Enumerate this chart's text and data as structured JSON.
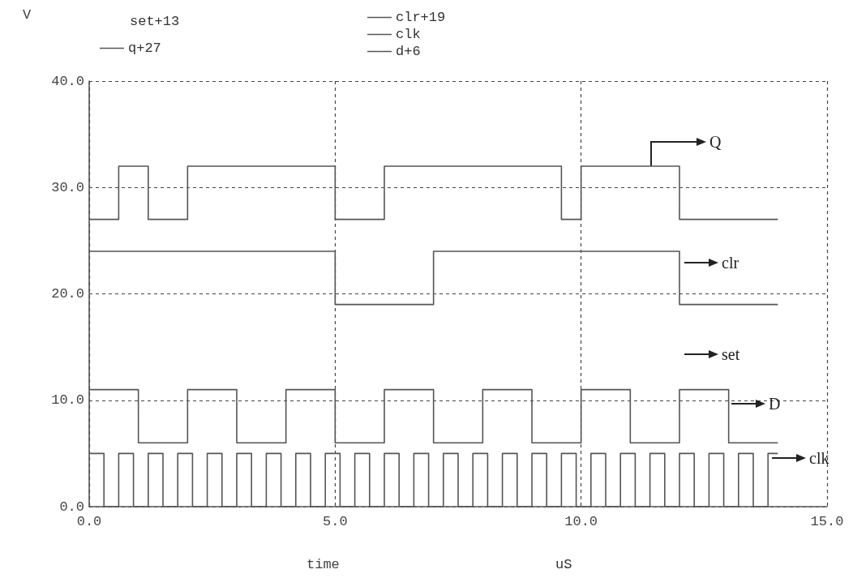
{
  "chart_data": {
    "type": "step",
    "ylabel": "V",
    "xlabel": "time",
    "annotations": [
      "set+13",
      "uS",
      "Q",
      "clr",
      "set",
      "D",
      "clk"
    ],
    "series": [
      {
        "name": "q+27",
        "color": "#555555",
        "x": [
          0,
          0.6,
          1.2,
          2,
          5,
          6,
          9.6,
          10,
          12,
          14
        ],
        "values": [
          27,
          32,
          27,
          32,
          27,
          32,
          27,
          32,
          27,
          27
        ]
      },
      {
        "name": "clr+19",
        "color": "#555555",
        "x": [
          0,
          5,
          7,
          12,
          14
        ],
        "values": [
          24,
          19,
          24,
          19,
          19
        ]
      },
      {
        "name": "clk",
        "color": "#555555",
        "x": [
          0,
          0.3,
          0.6,
          0.9,
          1.2,
          1.5,
          1.8,
          2.1,
          2.4,
          2.7,
          3,
          3.3,
          3.6,
          3.9,
          4.2,
          4.5,
          4.8,
          5.1,
          5.4,
          5.7,
          6,
          6.3,
          6.6,
          6.9,
          7.2,
          7.5,
          7.8,
          8.1,
          8.4,
          8.7,
          9,
          9.3,
          9.6,
          9.9,
          10.2,
          10.5,
          10.8,
          11.1,
          11.4,
          11.7,
          12,
          12.3,
          12.6,
          12.9,
          13.2,
          13.5,
          13.8,
          14
        ],
        "values": [
          5,
          0,
          5,
          0,
          5,
          0,
          5,
          0,
          5,
          0,
          5,
          0,
          5,
          0,
          5,
          0,
          5,
          0,
          5,
          0,
          5,
          0,
          5,
          0,
          5,
          0,
          5,
          0,
          5,
          0,
          5,
          0,
          5,
          0,
          5,
          0,
          5,
          0,
          5,
          0,
          5,
          0,
          5,
          0,
          5,
          0,
          5,
          5
        ]
      },
      {
        "name": "d+6",
        "color": "#555555",
        "x": [
          0,
          1,
          2,
          3,
          4,
          5,
          6,
          7,
          8,
          9,
          10,
          11,
          12,
          13,
          14
        ],
        "values": [
          11,
          6,
          11,
          6,
          11,
          6,
          11,
          6,
          11,
          6,
          11,
          6,
          11,
          6,
          6
        ]
      }
    ],
    "xlim": [
      0,
      15
    ],
    "xticks": [
      {
        "value": 0,
        "label": "0.0"
      },
      {
        "value": 5,
        "label": "5.0"
      },
      {
        "value": 10,
        "label": "10.0"
      },
      {
        "value": 15,
        "label": "15.0"
      }
    ],
    "ylim": [
      0,
      40
    ],
    "yticks": [
      {
        "value": 0,
        "label": "0.0"
      },
      {
        "value": 10,
        "label": "10.0"
      },
      {
        "value": 20,
        "label": "20.0"
      },
      {
        "value": 30,
        "label": "30.0"
      },
      {
        "value": 40,
        "label": "40.0"
      }
    ],
    "grid": true,
    "legend": "top",
    "marker": "none",
    "line_style": "solid"
  }
}
